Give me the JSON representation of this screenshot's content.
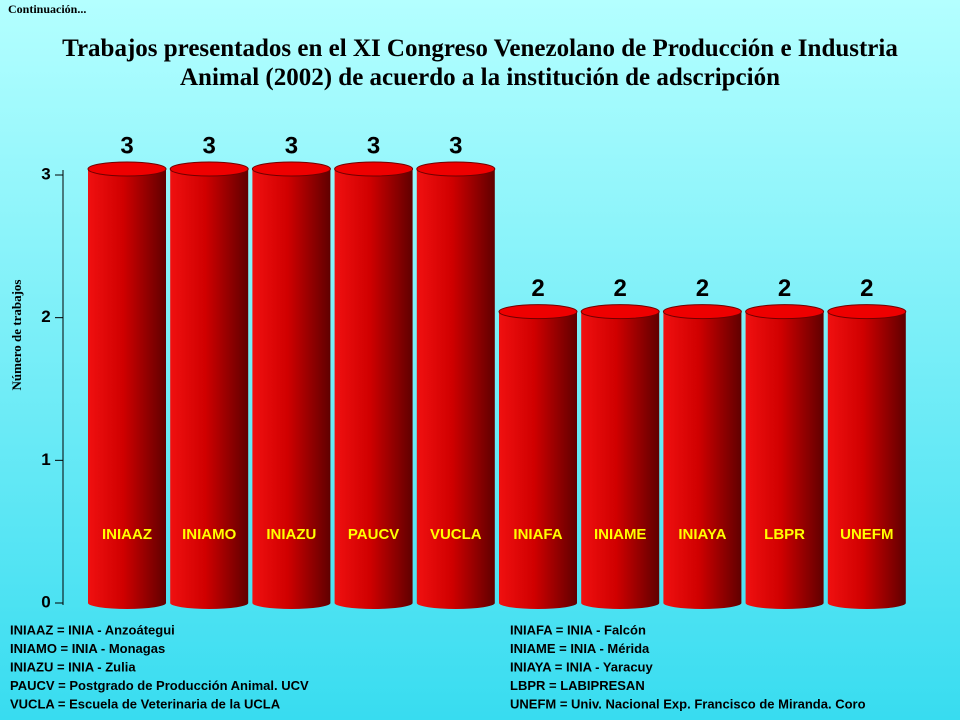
{
  "chart_data": {
    "type": "bar",
    "header": "Continuación...",
    "title": "Trabajos presentados en el XI Congreso Venezolano de Producción e Industria Animal (2002) de acuerdo a la institución de adscripción",
    "y_label": "Número de trabajos",
    "categories": [
      "INIAAZ",
      "INIAMO",
      "INIAZU",
      "PAUCV",
      "VUCLA",
      "INIAFA",
      "INIAME",
      "INIAYA",
      "LBPR",
      "UNEFM"
    ],
    "values": [
      3,
      3,
      3,
      3,
      3,
      2,
      2,
      2,
      2,
      2
    ],
    "color": "#e00000",
    "ylim": [
      0,
      3
    ],
    "yticks": [
      0,
      1,
      2,
      3
    ],
    "notes_left": [
      "INIAAZ = INIA - Anzoátegui",
      "INIAMO = INIA - Monagas",
      "INIAZU = INIA - Zulia",
      "PAUCV = Postgrado de Producción  Animal. UCV",
      "VUCLA = Escuela de Veterinaria de la UCLA"
    ],
    "notes_right": [
      "INIAFA = INIA - Falcón",
      "INIAME = INIA - Mérida",
      "INIAYA = INIA - Yaracuy",
      "LBPR = LABIPRESAN",
      "UNEFM = Univ. Nacional Exp. Francisco de Miranda. Coro"
    ]
  }
}
